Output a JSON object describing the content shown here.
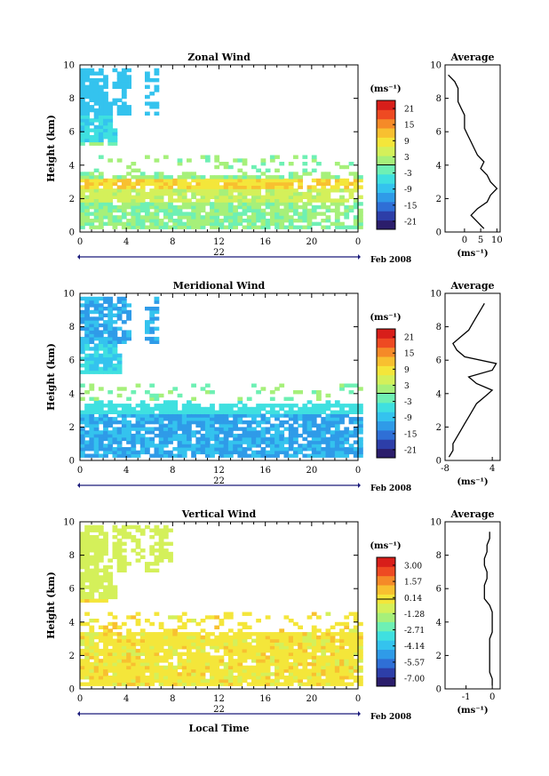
{
  "figure": {
    "x_axis_label": "Local Time",
    "date_label": "Feb 2008",
    "colors": {
      "scale": [
        "#2b1d6b",
        "#2d3ea8",
        "#2f6fd6",
        "#2f9be8",
        "#34c3ee",
        "#3fe0e0",
        "#6ef0b4",
        "#a6f07a",
        "#d4f05a",
        "#f4e63a",
        "#f8c030",
        "#f58a28",
        "#ee4a22",
        "#d81e1a"
      ],
      "axis": "#000000",
      "date_bar": "#1a1a7a"
    }
  },
  "chart_data": [
    {
      "type": "heatmap",
      "title": "Zonal Wind",
      "ylabel": "Height (km)",
      "xlim": [
        0,
        24
      ],
      "ylim": [
        0,
        10
      ],
      "x_ticks": [
        "0",
        "4",
        "8",
        "12",
        "16",
        "20",
        "0"
      ],
      "y_ticks": [
        "0",
        "2",
        "4",
        "6",
        "8",
        "10"
      ],
      "day_label": "22",
      "colorbar": {
        "unit": "(ms⁻¹)",
        "ticks": [
          "21",
          "15",
          "9",
          "3",
          "-3",
          "-9",
          "-15",
          "-21"
        ],
        "range": [
          -24,
          24
        ]
      },
      "average": {
        "title": "Average",
        "xlabel": "(ms⁻¹)",
        "x_ticks": [
          "0",
          "5",
          "10"
        ],
        "xlim": [
          -6,
          11
        ],
        "height_km": [
          0.2,
          0.6,
          1.0,
          1.4,
          1.8,
          2.2,
          2.6,
          3.0,
          3.4,
          3.8,
          4.2,
          4.6,
          5.0,
          5.4,
          5.8,
          6.2,
          6.6,
          7.0,
          7.4,
          7.8,
          8.2,
          8.6,
          9.0,
          9.4
        ],
        "values": [
          6,
          4,
          2,
          4,
          7,
          8,
          10,
          8,
          7,
          5,
          6,
          4,
          3,
          2,
          1,
          0,
          0,
          0,
          -1,
          -2,
          -2,
          -2,
          -3,
          -5
        ]
      }
    },
    {
      "type": "heatmap",
      "title": "Meridional Wind",
      "ylabel": "Height (km)",
      "xlim": [
        0,
        24
      ],
      "ylim": [
        0,
        10
      ],
      "x_ticks": [
        "0",
        "4",
        "8",
        "12",
        "16",
        "20",
        "0"
      ],
      "y_ticks": [
        "0",
        "2",
        "4",
        "6",
        "8",
        "10"
      ],
      "day_label": "22",
      "colorbar": {
        "unit": "(ms⁻¹)",
        "ticks": [
          "21",
          "15",
          "9",
          "3",
          "-3",
          "-9",
          "-15",
          "-21"
        ],
        "range": [
          -24,
          24
        ]
      },
      "average": {
        "title": "Average",
        "xlabel": "(ms⁻¹)",
        "x_ticks": [
          "-8",
          "4"
        ],
        "xlim": [
          -8,
          6
        ],
        "height_km": [
          0.2,
          0.6,
          1.0,
          1.4,
          1.8,
          2.2,
          2.6,
          3.0,
          3.4,
          3.8,
          4.2,
          4.6,
          5.0,
          5.4,
          5.8,
          6.2,
          6.6,
          7.0,
          7.4,
          7.8,
          8.2,
          8.6,
          9.0,
          9.4
        ],
        "values": [
          -7,
          -6,
          -6,
          -5,
          -4,
          -3,
          -2,
          -1,
          0,
          2,
          4,
          0,
          -2,
          4,
          5,
          -3,
          -5,
          -6,
          -4,
          -2,
          -1,
          0,
          1,
          2
        ]
      }
    },
    {
      "type": "heatmap",
      "title": "Vertical Wind",
      "ylabel": "Height (km)",
      "xlim": [
        0,
        24
      ],
      "ylim": [
        0,
        10
      ],
      "x_ticks": [
        "0",
        "4",
        "8",
        "12",
        "16",
        "20",
        "0"
      ],
      "y_ticks": [
        "0",
        "2",
        "4",
        "6",
        "8",
        "10"
      ],
      "day_label": "22",
      "colorbar": {
        "unit": "(ms⁻¹)",
        "ticks": [
          "3.00",
          "1.57",
          "0.14",
          "-1.28",
          "-2.71",
          "-4.14",
          "-5.57",
          "-7.00"
        ],
        "range": [
          -7.7,
          3.7
        ]
      },
      "average": {
        "title": "Average",
        "xlabel": "(ms⁻¹)",
        "x_ticks": [
          "-1",
          "0"
        ],
        "xlim": [
          -1.8,
          0.3
        ],
        "height_km": [
          0.2,
          0.6,
          1.0,
          1.4,
          1.8,
          2.2,
          2.6,
          3.0,
          3.4,
          3.8,
          4.2,
          4.6,
          5.0,
          5.4,
          5.8,
          6.2,
          6.6,
          7.0,
          7.4,
          7.8,
          8.2,
          8.6,
          9.0,
          9.4
        ],
        "values": [
          0.0,
          0.0,
          -0.1,
          -0.1,
          -0.1,
          -0.1,
          -0.1,
          -0.1,
          0.0,
          0.0,
          0.0,
          0.0,
          -0.1,
          -0.3,
          -0.3,
          -0.3,
          -0.2,
          -0.2,
          -0.3,
          -0.3,
          -0.2,
          -0.2,
          -0.1,
          -0.1
        ]
      }
    }
  ]
}
